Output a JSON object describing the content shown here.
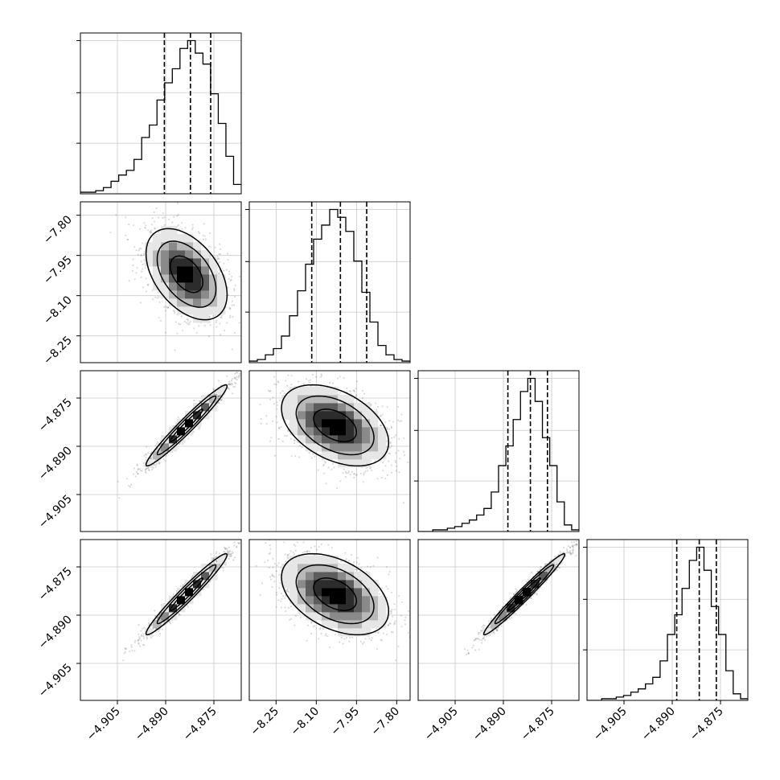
{
  "colors": {
    "line": "#000000",
    "grid": "#c8c8c8",
    "scatter": "#555555",
    "density": [
      "#e6e6e6",
      "#b9b9b9",
      "#8a8a8a",
      "#5c5c5c",
      "#2c2c2c",
      "#000000"
    ]
  },
  "chart_data": {
    "type": "corner",
    "grid": true,
    "parameters": [
      {
        "range": [
          -4.9165,
          -4.8665
        ],
        "ticks": [
          -4.905,
          -4.89,
          -4.875
        ],
        "tick_labels": [
          "−4.905",
          "−4.890",
          "−4.875"
        ]
      },
      {
        "range": [
          -8.35,
          -7.75
        ],
        "ticks": [
          -8.25,
          -8.1,
          -7.95,
          -7.8
        ],
        "tick_labels": [
          "−8.25",
          "−8.10",
          "−7.95",
          "−7.80"
        ]
      },
      {
        "range": [
          -4.9165,
          -4.8665
        ],
        "ticks": [
          -4.905,
          -4.89,
          -4.875
        ],
        "tick_labels": [
          "−4.905",
          "−4.890",
          "−4.875"
        ]
      },
      {
        "range": [
          -4.9165,
          -4.8665
        ],
        "ticks": [
          -4.905,
          -4.89,
          -4.875
        ],
        "tick_labels": [
          "−4.905",
          "−4.890",
          "−4.875"
        ]
      }
    ],
    "histograms": [
      {
        "counts": [
          1,
          1,
          2,
          4,
          8,
          12,
          15,
          22,
          36,
          44,
          60,
          71,
          80,
          93,
          98,
          90,
          83,
          64,
          45,
          24,
          6
        ],
        "quantiles": [
          -4.8904,
          -4.8823,
          -4.876
        ],
        "max": 98
      },
      {
        "counts": [
          1,
          2,
          5,
          9,
          17,
          30,
          46,
          63,
          79,
          88,
          98,
          93,
          84,
          65,
          45,
          26,
          11,
          5,
          2,
          1
        ],
        "quantiles": [
          -8.117,
          -8.01,
          -7.912
        ],
        "max": 98
      },
      {
        "counts": [
          0,
          0,
          1,
          1,
          2,
          3,
          5,
          7,
          10,
          14,
          24,
          40,
          52,
          68,
          85,
          93,
          79,
          57,
          40,
          18,
          4,
          1
        ],
        "quantiles": [
          -4.8886,
          -4.8816,
          -4.8763
        ],
        "max": 93
      },
      {
        "counts": [
          0,
          0,
          1,
          1,
          2,
          3,
          5,
          7,
          10,
          14,
          24,
          40,
          52,
          68,
          85,
          93,
          79,
          57,
          40,
          18,
          4,
          1
        ],
        "quantiles": [
          -4.8886,
          -4.8816,
          -4.8763
        ],
        "max": 93
      }
    ],
    "pairs": [
      {
        "row": 1,
        "col": 0,
        "mean": [
          -4.8835,
          -8.02
        ],
        "sd": [
          0.0063,
          0.085
        ],
        "corr": -0.45
      },
      {
        "row": 2,
        "col": 0,
        "mean": [
          -4.8835,
          -4.8835
        ],
        "sd": [
          0.0063,
          0.0063
        ],
        "corr": 0.97
      },
      {
        "row": 2,
        "col": 1,
        "mean": [
          -8.03,
          -4.8835
        ],
        "sd": [
          0.1,
          0.0063
        ],
        "corr": -0.42
      },
      {
        "row": 3,
        "col": 0,
        "mean": [
          -4.8835,
          -4.8835
        ],
        "sd": [
          0.0063,
          0.0063
        ],
        "corr": 0.97
      },
      {
        "row": 3,
        "col": 1,
        "mean": [
          -8.03,
          -4.8835
        ],
        "sd": [
          0.1,
          0.0063
        ],
        "corr": -0.42
      },
      {
        "row": 3,
        "col": 2,
        "mean": [
          -4.8835,
          -4.8835
        ],
        "sd": [
          0.0063,
          0.0063
        ],
        "corr": 0.98
      }
    ]
  }
}
